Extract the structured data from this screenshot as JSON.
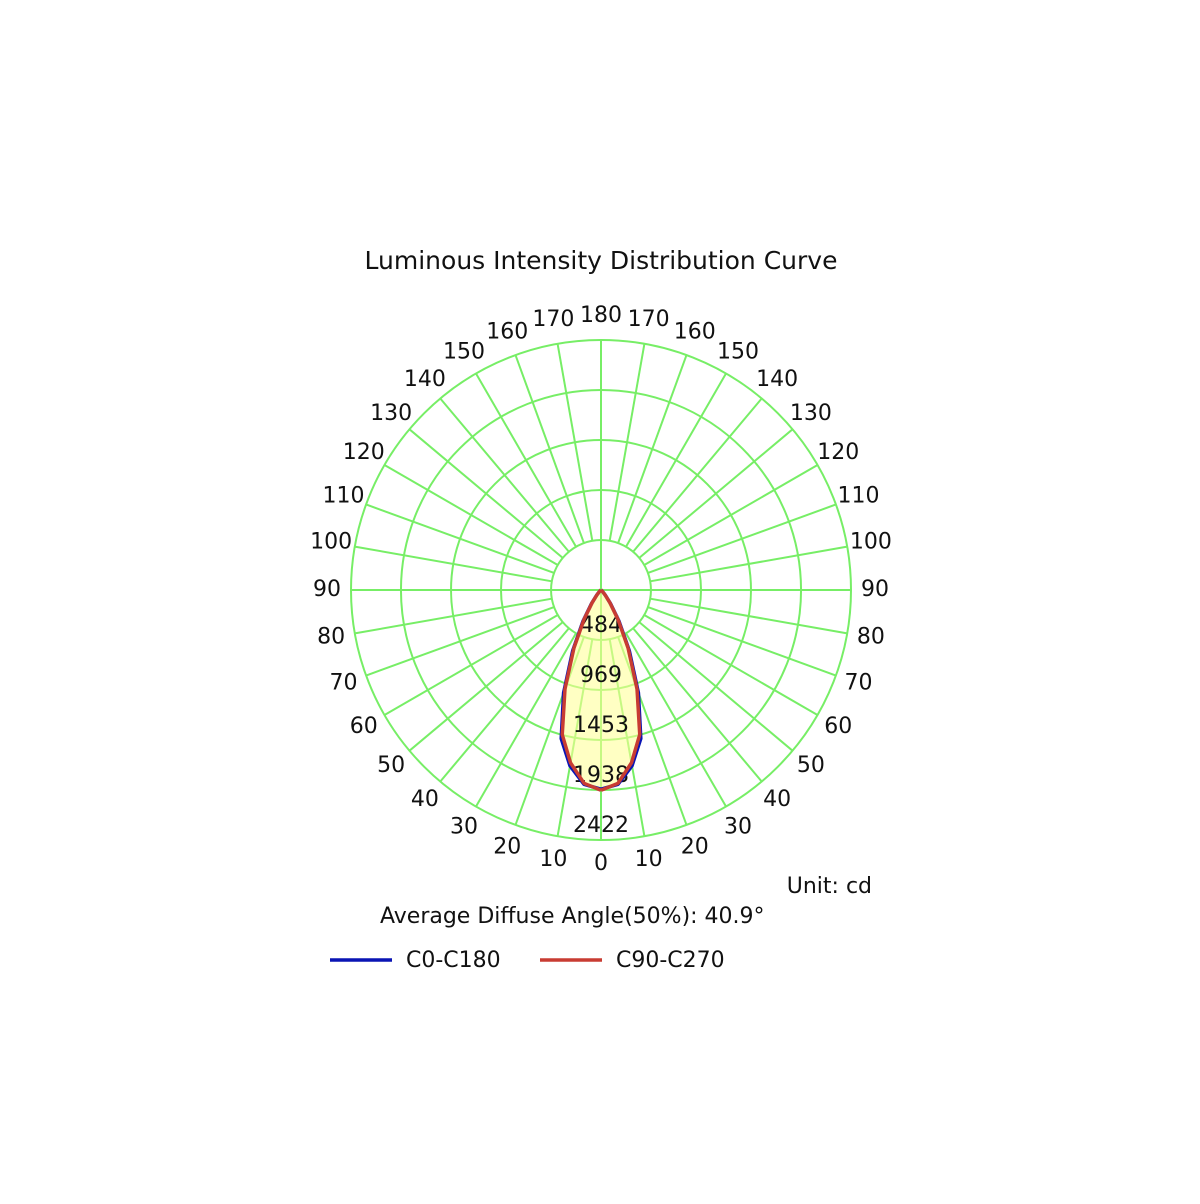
{
  "chart_data": {
    "type": "polar",
    "title": "Luminous Intensity Distribution Curve",
    "unit_label": "Unit: cd",
    "note": "Average Diffuse Angle(50%): 40.9°",
    "theta": [
      0,
      5,
      10,
      15,
      20,
      25,
      30,
      35,
      40,
      45,
      50,
      55,
      60,
      65,
      70,
      75,
      80,
      85,
      90
    ],
    "theta_ticks": [
      0,
      10,
      20,
      30,
      40,
      50,
      60,
      70,
      80,
      90,
      100,
      110,
      120,
      130,
      140,
      150,
      160,
      170,
      180
    ],
    "rlim": [
      0,
      2422
    ],
    "rticks": [
      484,
      969,
      1453,
      1938,
      2422
    ],
    "grid_color": "#77ee66",
    "series": [
      {
        "name": "C0-C180",
        "color": "#0a14b4",
        "values": [
          1930,
          1890,
          1730,
          1490,
          1060,
          650,
          350,
          160,
          65,
          22,
          6,
          0,
          0,
          0,
          0,
          0,
          0,
          0,
          0
        ]
      },
      {
        "name": "C90-C270",
        "color": "#c83c32",
        "values": [
          1940,
          1880,
          1700,
          1450,
          1020,
          620,
          330,
          150,
          60,
          20,
          5,
          0,
          0,
          0,
          0,
          0,
          0,
          0,
          0
        ]
      }
    ]
  }
}
